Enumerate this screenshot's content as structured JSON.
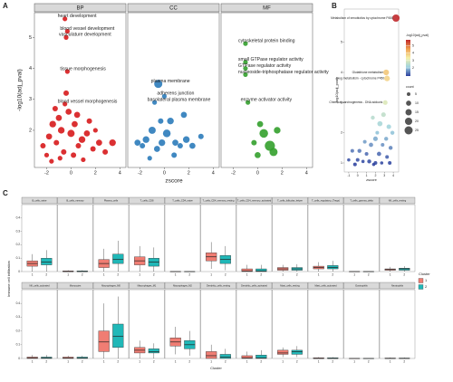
{
  "chart_data": [
    {
      "panel": "A",
      "type": "scatter",
      "xlabel": "zscore",
      "ylabel": "-log10(adj_pval)",
      "xlim": [
        -3,
        4.5
      ],
      "xticks": [
        -2,
        0,
        2,
        4
      ],
      "ylim": [
        0.8,
        5.8
      ],
      "yticks": [
        2,
        3,
        4,
        5
      ],
      "grid": false,
      "facets": [
        {
          "title": "BP",
          "color": "#d7191c",
          "x": [
            -0.5,
            -0.3,
            -0.4,
            -0.3,
            -0.5,
            -2.3,
            -1.8,
            -1.5,
            -1.2,
            -1.0,
            -0.8,
            -0.6,
            -0.2,
            0,
            0.3,
            0.6,
            0.9,
            1.3,
            1.8,
            2.3,
            2.8,
            3.4,
            -1.6,
            -0.9,
            0.2,
            1.0,
            -2.0,
            0.5,
            -0.4,
            1.5,
            2.0,
            -1.3
          ],
          "y": [
            5.6,
            5.2,
            5.0,
            3.9,
            2.85,
            1.5,
            1.8,
            2.2,
            1.6,
            2.4,
            2.0,
            1.3,
            2.6,
            1.9,
            2.2,
            1.5,
            1.7,
            1.9,
            1.4,
            1.6,
            1.3,
            1.6,
            1.0,
            1.1,
            1.2,
            1.05,
            1.2,
            2.5,
            3.2,
            2.3,
            2.0,
            2.7
          ],
          "sizes": [
            3,
            3,
            3,
            3,
            3,
            4,
            5,
            6,
            4,
            5,
            6,
            4,
            5,
            7,
            5,
            4,
            6,
            5,
            4,
            5,
            4,
            6,
            3,
            3,
            4,
            3,
            3,
            5,
            4,
            4,
            3,
            4
          ],
          "labels": [
            "heart development",
            "blood vessel development",
            "vasculature development",
            "tissue morphogenesis",
            "blood vessel morphogenesis",
            null,
            null,
            null,
            null,
            null,
            null,
            null,
            null,
            null,
            null,
            null,
            null,
            null,
            null,
            null,
            null,
            null,
            null,
            null,
            null,
            null,
            null,
            null,
            null,
            null,
            null,
            null
          ]
        },
        {
          "title": "CC",
          "color": "#2b7bba",
          "x": [
            -0.5,
            0,
            -0.8,
            -2.2,
            -1.8,
            -1.5,
            -1.0,
            -0.6,
            -0.2,
            0.2,
            0.5,
            0.9,
            1.3,
            1.8,
            2.3,
            3.0,
            -1.2,
            0.8,
            1.6,
            -0.3
          ],
          "y": [
            3.5,
            3.1,
            2.9,
            1.6,
            1.5,
            1.7,
            2.0,
            1.4,
            1.6,
            1.9,
            2.3,
            1.6,
            1.5,
            1.7,
            1.5,
            1.8,
            1.1,
            1.2,
            2.5,
            2.3
          ],
          "sizes": [
            9,
            3,
            3,
            5,
            4,
            6,
            7,
            5,
            6,
            8,
            6,
            5,
            4,
            6,
            5,
            4,
            3,
            4,
            5,
            4
          ],
          "labels": [
            "plasma membrane",
            "adherens junction",
            "basolateral plasma membrane",
            null,
            null,
            null,
            null,
            null,
            null,
            null,
            null,
            null,
            null,
            null,
            null,
            null,
            null,
            null,
            null,
            null
          ]
        },
        {
          "title": "MF",
          "color": "#33a02c",
          "x": [
            -1,
            -1,
            -1,
            -1,
            -0.8,
            0.5,
            1.0,
            1.3,
            0.2,
            -0.3,
            1.6,
            0.0
          ],
          "y": [
            4.8,
            4.2,
            4.0,
            3.8,
            2.9,
            1.9,
            1.5,
            1.3,
            2.2,
            1.6,
            2.0,
            1.2
          ],
          "sizes": [
            3,
            3,
            3,
            3,
            3,
            10,
            14,
            9,
            5,
            4,
            6,
            5
          ],
          "labels": [
            "cytoskeletal protein binding",
            "small GTPase regulator activity",
            "GTPase regulator activity",
            "nucleoside-triphosphatase regulator activity",
            "enzyme activator activity",
            null,
            null,
            null,
            null,
            null,
            null,
            null
          ]
        }
      ]
    },
    {
      "panel": "B",
      "type": "scatter",
      "xlabel": "zscore",
      "ylabel": "-log10(adj_pval)",
      "xlim": [
        -1.5,
        4.6
      ],
      "xticks": [
        -1,
        0,
        1,
        2,
        3,
        4
      ],
      "ylim": [
        0.7,
        6.1
      ],
      "yticks": [
        1,
        2,
        3,
        4,
        5
      ],
      "grid": false,
      "x": [
        4.3,
        3.2,
        3.3,
        3.1,
        2.9,
        1.7,
        2.5,
        3.5,
        3.9,
        2.2,
        2.0,
        3.2,
        0.8,
        1.5,
        2.8,
        3.7,
        -0.6,
        0.2,
        1.0,
        2.4,
        3.3,
        -1.0,
        0,
        0.6,
        1.3,
        2.0,
        2.7,
        3.6,
        -0.3,
        1.8
      ],
      "y": [
        5.8,
        4.0,
        3.8,
        3.0,
        2.6,
        2.5,
        2.3,
        2.2,
        2.0,
        2.0,
        1.8,
        1.8,
        1.7,
        1.6,
        1.6,
        1.5,
        1.4,
        1.4,
        1.3,
        1.3,
        1.2,
        1.1,
        1.1,
        1.05,
        1.05,
        1.0,
        1.0,
        1.0,
        0.95,
        0.95
      ],
      "sizes": [
        20,
        12,
        12,
        8,
        8,
        6,
        10,
        8,
        6,
        5,
        8,
        6,
        5,
        7,
        5,
        6,
        5,
        6,
        5,
        7,
        5,
        4,
        5,
        4,
        6,
        5,
        4,
        5,
        5,
        4
      ],
      "labels": [
        "Metabolism of xenobiotics by cytochrome P450",
        "Glutathione metabolism",
        "Drug metabolism - cytochrome P450",
        "Chemical carcinogenesis - DNA adducts",
        null,
        null,
        null,
        null,
        null,
        null,
        null,
        null,
        null,
        null,
        null,
        null,
        null,
        null,
        null,
        null,
        null,
        null,
        null,
        null,
        null,
        null,
        null,
        null,
        null,
        null
      ],
      "colorbar": {
        "title": "-log10(adj_pval)",
        "colors": [
          "#2c3f9e",
          "#9fd3e0",
          "#f5f0a8",
          "#f0a050",
          "#c0282b"
        ],
        "lim": [
          0.9,
          5.8
        ],
        "ticks": [
          2,
          3,
          4,
          5
        ]
      },
      "size_legend": {
        "title": "count",
        "values": [
          5,
          10,
          15,
          20,
          25
        ]
      }
    },
    {
      "panel": "C",
      "type": "box",
      "xlabel": "Cluster",
      "ylabel": "Immune cell infiltration",
      "legend_title": "Cluster",
      "ylim": [
        0,
        0.5
      ],
      "yticks": [
        0,
        0.1,
        0.2,
        0.3,
        0.4
      ],
      "grid": false,
      "facets": [
        "B_cells_naive",
        "B_cells_memory",
        "Plasma_cells",
        "T_cells_CD8",
        "T_cells_CD4_naive",
        "T_cells_CD4_memory_resting",
        "T_cells_CD4_memory_activated",
        "T_cells_follicular_helper",
        "T_cells_regulatory_(Tregs)",
        "T_cells_gamma_delta",
        "NK_cells_resting",
        "NK_cells_activated",
        "Monocytes",
        "Macrophages_M0",
        "Macrophages_M1",
        "Macrophages_M2",
        "Dendritic_cells_resting",
        "Dendritic_cells_activated",
        "Mast_cells_resting",
        "Mast_cells_activated",
        "Eosinophils",
        "Neutrophils"
      ],
      "series": [
        {
          "name": "1",
          "color": "#f07d73",
          "whislo": [
            0,
            0,
            0,
            0,
            0,
            0.02,
            0,
            0,
            0,
            0,
            0,
            0,
            0,
            0,
            0,
            0.03,
            0,
            0,
            0.01,
            0,
            0,
            0
          ],
          "q1": [
            0.04,
            0,
            0.03,
            0.05,
            0,
            0.08,
            0,
            0.01,
            0.02,
            0,
            0.01,
            0,
            0,
            0.05,
            0.04,
            0.09,
            0,
            0,
            0.03,
            0,
            0,
            0
          ],
          "median": [
            0.06,
            0,
            0.06,
            0.08,
            0,
            0.11,
            0.005,
            0.02,
            0.03,
            0,
            0.015,
            0.005,
            0.003,
            0.12,
            0.06,
            0.12,
            0.02,
            0.005,
            0.04,
            0,
            0,
            0
          ],
          "q3": [
            0.08,
            0.005,
            0.09,
            0.11,
            0,
            0.14,
            0.02,
            0.03,
            0.04,
            0,
            0.02,
            0.01,
            0.01,
            0.2,
            0.08,
            0.15,
            0.05,
            0.02,
            0.06,
            0.005,
            0,
            0.003
          ],
          "whishi": [
            0.13,
            0.01,
            0.17,
            0.19,
            0,
            0.22,
            0.05,
            0.05,
            0.07,
            0,
            0.035,
            0.025,
            0.02,
            0.4,
            0.13,
            0.23,
            0.1,
            0.05,
            0.08,
            0.01,
            0,
            0.007
          ]
        },
        {
          "name": "2",
          "color": "#20b8b8",
          "whislo": [
            0,
            0,
            0,
            0,
            0,
            0.01,
            0,
            0,
            0,
            0,
            0,
            0,
            0,
            0,
            0,
            0.02,
            0,
            0,
            0.01,
            0,
            0,
            0
          ],
          "q1": [
            0.05,
            0,
            0.06,
            0.04,
            0,
            0.06,
            0,
            0.01,
            0.02,
            0,
            0.01,
            0,
            0,
            0.08,
            0.04,
            0.07,
            0,
            0,
            0.03,
            0,
            0,
            0
          ],
          "median": [
            0.07,
            0,
            0.09,
            0.07,
            0,
            0.09,
            0.005,
            0.02,
            0.03,
            0,
            0.02,
            0.005,
            0.003,
            0.16,
            0.05,
            0.1,
            0.01,
            0.005,
            0.05,
            0,
            0,
            0
          ],
          "q3": [
            0.1,
            0.005,
            0.13,
            0.1,
            0,
            0.12,
            0.02,
            0.03,
            0.045,
            0,
            0.025,
            0.01,
            0.01,
            0.25,
            0.07,
            0.13,
            0.03,
            0.025,
            0.06,
            0.005,
            0,
            0.003
          ],
          "whishi": [
            0.16,
            0.01,
            0.23,
            0.18,
            0,
            0.19,
            0.05,
            0.055,
            0.08,
            0,
            0.04,
            0.025,
            0.02,
            0.45,
            0.11,
            0.2,
            0.07,
            0.06,
            0.09,
            0.01,
            0,
            0.007
          ]
        }
      ]
    }
  ]
}
